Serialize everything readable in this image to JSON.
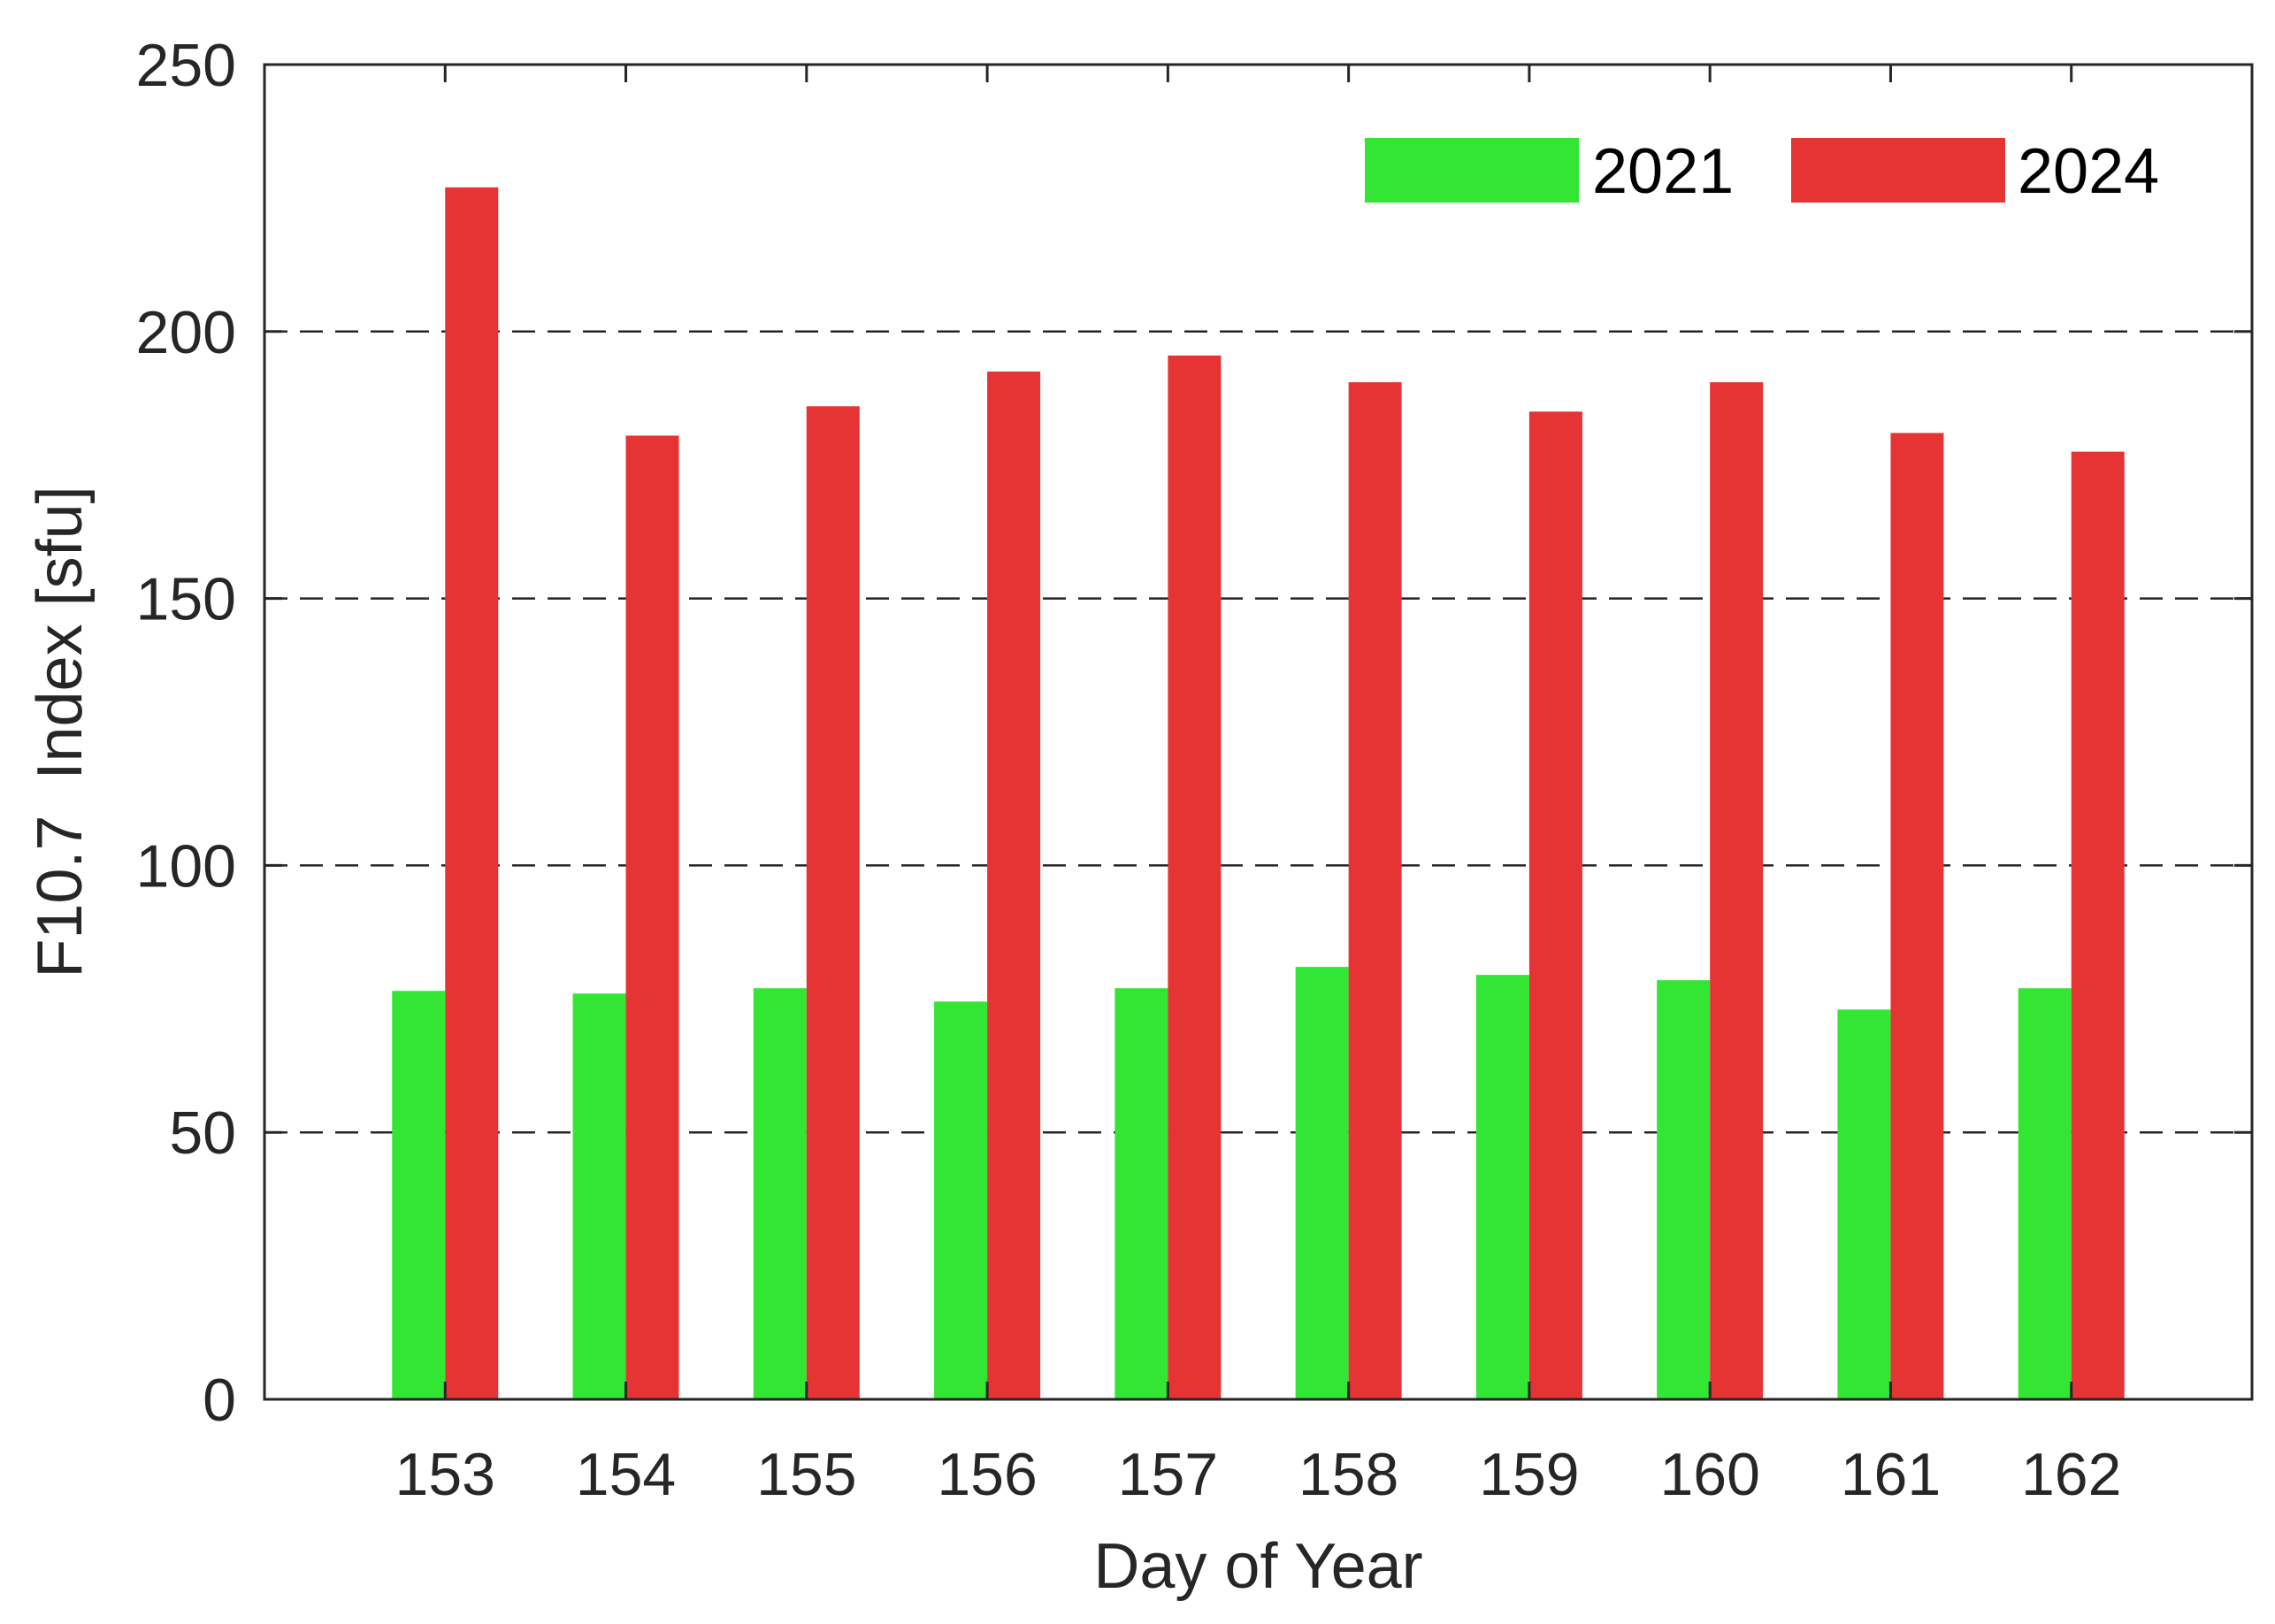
{
  "chart_data": {
    "type": "bar",
    "title": "",
    "xlabel": "Day of Year",
    "ylabel": "F10.7  Index [sfu]",
    "categories": [
      "153",
      "154",
      "155",
      "156",
      "157",
      "158",
      "159",
      "160",
      "161",
      "162"
    ],
    "series": [
      {
        "name": "2021",
        "color": "#33e633",
        "values": [
          76.5,
          76,
          77,
          74.5,
          77,
          81,
          79.5,
          78.5,
          73,
          77
        ]
      },
      {
        "name": "2024",
        "color": "#e63333",
        "values": [
          227,
          180.5,
          186,
          192.5,
          195.5,
          190.5,
          185,
          190.5,
          181,
          177.5
        ]
      }
    ],
    "ylim": [
      0,
      250
    ],
    "yticks": [
      "0",
      "50",
      "100",
      "150",
      "200",
      "250"
    ],
    "grid": "horizontal dashed",
    "legend_position": "top-right"
  }
}
